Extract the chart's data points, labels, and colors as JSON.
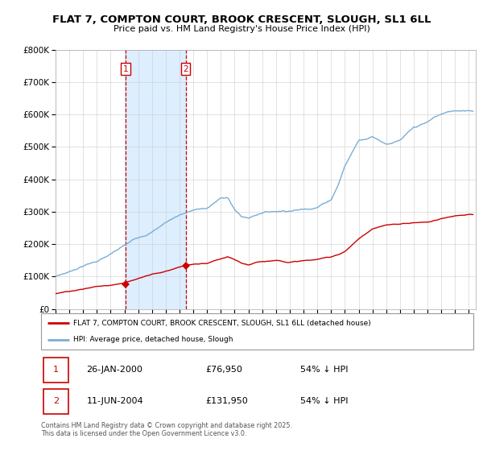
{
  "title": "FLAT 7, COMPTON COURT, BROOK CRESCENT, SLOUGH, SL1 6LL",
  "subtitle": "Price paid vs. HM Land Registry's House Price Index (HPI)",
  "ylim": [
    0,
    800000
  ],
  "xlim_start": 1995,
  "xlim_end": 2025.5,
  "sale1_year": 2000.071,
  "sale1_price": 76950,
  "sale2_year": 2004.44,
  "sale2_price": 131950,
  "legend_label_red": "FLAT 7, COMPTON COURT, BROOK CRESCENT, SLOUGH, SL1 6LL (detached house)",
  "legend_label_blue": "HPI: Average price, detached house, Slough",
  "sale1_date": "26-JAN-2000",
  "sale1_price_str": "£76,950",
  "sale1_hpi_str": "54% ↓ HPI",
  "sale2_date": "11-JUN-2004",
  "sale2_price_str": "£131,950",
  "sale2_hpi_str": "54% ↓ HPI",
  "footer": "Contains HM Land Registry data © Crown copyright and database right 2025.\nThis data is licensed under the Open Government Licence v3.0.",
  "red_color": "#cc0000",
  "blue_color": "#7bafd4",
  "highlight_color": "#ddeeff",
  "grid_color": "#cccccc",
  "anchors_blue_x": [
    1995,
    1996,
    1997,
    1998,
    1999,
    2000,
    2001,
    2002,
    2003,
    2004,
    2005,
    2006,
    2007,
    2007.5,
    2008,
    2008.5,
    2009,
    2009.5,
    2010,
    2011,
    2012,
    2013,
    2014,
    2015,
    2015.5,
    2016,
    2016.5,
    2017,
    2018,
    2019,
    2020,
    2021,
    2022,
    2022.5,
    2023,
    2024,
    2025
  ],
  "anchors_blue_y": [
    100000,
    115000,
    135000,
    150000,
    170000,
    195000,
    220000,
    240000,
    270000,
    295000,
    310000,
    315000,
    345000,
    350000,
    310000,
    290000,
    285000,
    295000,
    305000,
    310000,
    315000,
    320000,
    330000,
    355000,
    400000,
    460000,
    500000,
    540000,
    555000,
    535000,
    545000,
    580000,
    595000,
    610000,
    620000,
    630000,
    635000
  ],
  "anchors_red_x": [
    1995,
    1996,
    1997,
    1998,
    1999,
    2000,
    2001,
    2002,
    2003,
    2004,
    2005,
    2006,
    2007,
    2007.5,
    2008,
    2008.5,
    2009,
    2009.5,
    2010,
    2011,
    2012,
    2013,
    2014,
    2015,
    2016,
    2017,
    2018,
    2019,
    2020,
    2021,
    2022,
    2023,
    2024,
    2025
  ],
  "anchors_red_y": [
    47000,
    53000,
    62000,
    70000,
    74000,
    82000,
    97000,
    108000,
    118000,
    132000,
    140000,
    140000,
    153000,
    157000,
    148000,
    137000,
    132000,
    137000,
    142000,
    147000,
    143000,
    147000,
    150000,
    158000,
    175000,
    215000,
    245000,
    255000,
    258000,
    263000,
    265000,
    275000,
    285000,
    292000
  ]
}
